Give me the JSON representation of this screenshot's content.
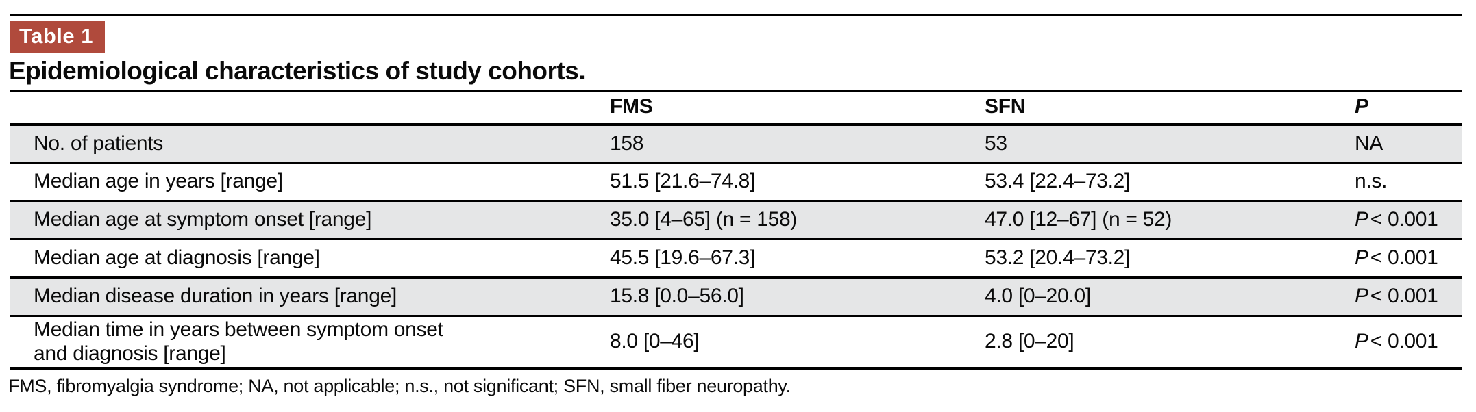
{
  "colors": {
    "badge_background": "#b04a3c",
    "row_stripe": "#e5e6e7",
    "rule": "#000000"
  },
  "label": "Table 1",
  "title": "Epidemiological characteristics of study cohorts.",
  "table": {
    "header": {
      "fms": "FMS",
      "sfn": "SFN",
      "p": "P"
    },
    "rows": [
      {
        "label": "No. of patients",
        "label2": "",
        "fms": "158",
        "sfn": "53",
        "p_prefix": "",
        "p": "NA"
      },
      {
        "label": "Median age in years [range]",
        "label2": "",
        "fms": "51.5 [21.6–74.8]",
        "sfn": "53.4 [22.4–73.2]",
        "p_prefix": "",
        "p": "n.s."
      },
      {
        "label": "Median age at symptom onset [range]",
        "label2": "",
        "fms": "35.0 [4–65] (n = 158)",
        "sfn": "47.0 [12–67] (n = 52)",
        "p_prefix": "P",
        "p": "< 0.001"
      },
      {
        "label": "Median age at diagnosis [range]",
        "label2": "",
        "fms": "45.5 [19.6–67.3]",
        "sfn": "53.2 [20.4–73.2]",
        "p_prefix": "P",
        "p": "< 0.001"
      },
      {
        "label": "Median disease duration in years [range]",
        "label2": "",
        "fms": "15.8 [0.0–56.0]",
        "sfn": "4.0 [0–20.0]",
        "p_prefix": "P",
        "p": "< 0.001"
      },
      {
        "label": "Median time in years between symptom onset",
        "label2": "and diagnosis [range]",
        "fms": "8.0 [0–46]",
        "sfn": "2.8 [0–20]",
        "p_prefix": "P",
        "p": "< 0.001"
      }
    ]
  },
  "footnote": "FMS, fibromyalgia syndrome; NA, not applicable; n.s., not significant; SFN, small fiber neuropathy."
}
